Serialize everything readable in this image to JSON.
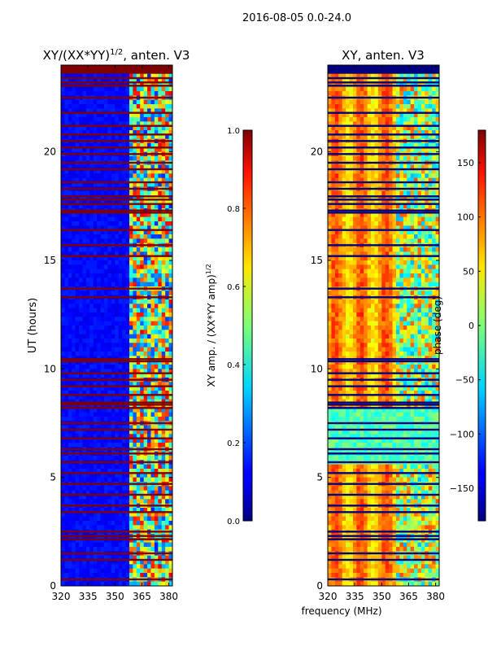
{
  "suptitle": "2016-08-05 0.0-24.0",
  "xlabel": "frequency (MHz)",
  "chart_data": [
    {
      "type": "heatmap",
      "title_prefix": "XY/(XX*YY)",
      "title_exponent": "1/2",
      "title_suffix": ", anten. V3",
      "xlabel": "frequency (MHz)",
      "ylabel": "UT (hours)",
      "xlim": [
        320,
        382
      ],
      "ylim": [
        0,
        24
      ],
      "xticks": [
        320,
        335,
        350,
        365,
        380
      ],
      "yticks": [
        0,
        5,
        10,
        15,
        20
      ],
      "colorbar": {
        "label_prefix": "XY amp. / (XX*YY amp)",
        "label_exponent": "1/2",
        "range": [
          0.0,
          1.0
        ],
        "ticks": [
          "0.0",
          "0.2",
          "0.4",
          "0.6",
          "0.8",
          "1.0"
        ],
        "colormap": "jet"
      },
      "bright_band_freq_start": 359,
      "flagged_hours": [
        0.3,
        1.2,
        1.5,
        2.15,
        2.3,
        2.5,
        3.4,
        3.7,
        4.2,
        4.7,
        5.2,
        5.7,
        6.1,
        6.3,
        6.8,
        7.2,
        7.5,
        8.2,
        8.35,
        8.45,
        8.8,
        9.2,
        9.5,
        9.8,
        10.35,
        10.45,
        13.3,
        13.7,
        15.2,
        15.7,
        16.4,
        17.2,
        17.3,
        17.6,
        17.8,
        17.95,
        18.3,
        18.6,
        19.2,
        19.5,
        19.9,
        20.2,
        20.5,
        20.8,
        21.2,
        21.8,
        22.5,
        23.05,
        23.2,
        23.4
      ]
    },
    {
      "type": "heatmap",
      "title": "XY, anten. V3",
      "xlabel": "frequency (MHz)",
      "xlim": [
        320,
        382
      ],
      "ylim": [
        0,
        24
      ],
      "xticks": [
        320,
        335,
        350,
        365,
        380
      ],
      "yticks": [
        0,
        5,
        10,
        15,
        20
      ],
      "colorbar": {
        "label": "phase (deg)",
        "range": [
          -180,
          180
        ],
        "ticks": [
          "150",
          "100",
          "50",
          "0",
          "−50",
          "−100",
          "−150"
        ],
        "tick_values": [
          150,
          100,
          50,
          0,
          -50,
          -100,
          -150
        ],
        "colormap": "jet"
      },
      "flagged_hours": [
        0.3,
        1.2,
        1.5,
        2.15,
        2.3,
        2.5,
        3.4,
        3.7,
        4.2,
        4.7,
        5.2,
        5.7,
        6.1,
        6.3,
        6.8,
        7.2,
        7.5,
        8.2,
        8.35,
        8.45,
        8.8,
        9.2,
        9.5,
        9.8,
        10.35,
        10.45,
        13.3,
        13.7,
        15.2,
        15.7,
        16.4,
        17.2,
        17.3,
        17.6,
        17.8,
        17.95,
        18.3,
        18.6,
        19.2,
        19.5,
        19.9,
        20.2,
        20.5,
        20.8,
        21.2,
        21.8,
        22.5,
        23.05,
        23.2,
        23.4
      ]
    }
  ]
}
